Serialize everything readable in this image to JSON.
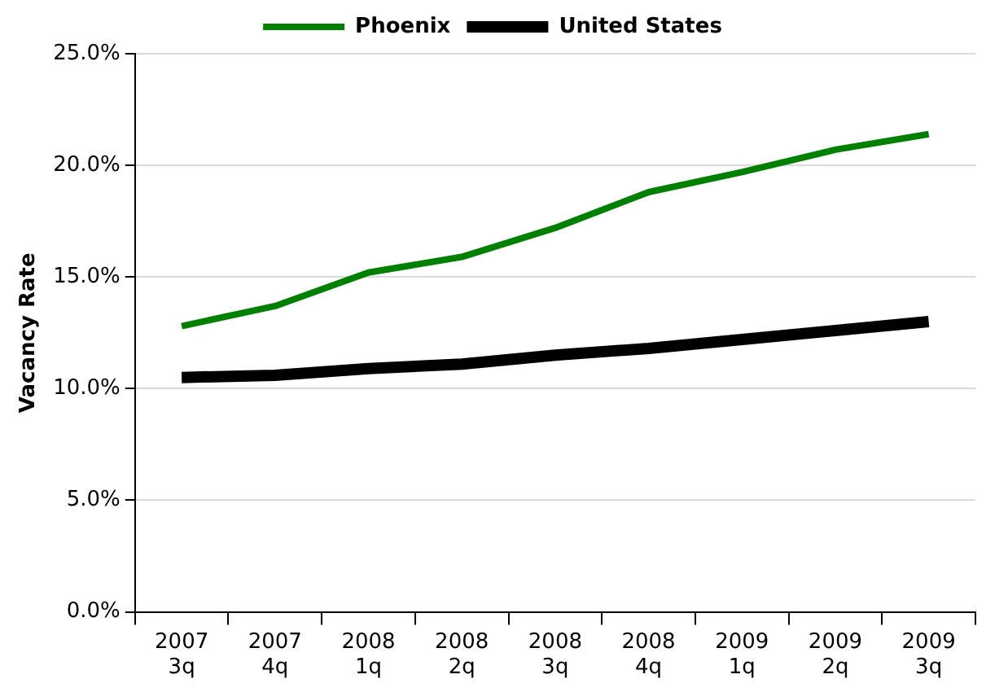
{
  "chart_data": {
    "type": "line",
    "ylabel": "Vacancy Rate",
    "categories": [
      "2007 3q",
      "2007 4q",
      "2008 1q",
      "2008 2q",
      "2008 3q",
      "2008 4q",
      "2009 1q",
      "2009 2q",
      "2009 3q"
    ],
    "series": [
      {
        "name": "Phoenix",
        "color": "#008000",
        "values": [
          12.8,
          13.7,
          15.2,
          15.9,
          17.2,
          18.8,
          19.7,
          20.7,
          21.4
        ]
      },
      {
        "name": "United States",
        "color": "#000000",
        "values": [
          10.5,
          10.6,
          10.9,
          11.1,
          11.5,
          11.8,
          12.2,
          12.6,
          13.0
        ]
      }
    ],
    "ylim": [
      0,
      25
    ],
    "yticks": [
      {
        "value": 0,
        "label": "0.0%"
      },
      {
        "value": 5,
        "label": "5.0%"
      },
      {
        "value": 10,
        "label": "10.0%"
      },
      {
        "value": 15,
        "label": "15.0%"
      },
      {
        "value": 20,
        "label": "20.0%"
      },
      {
        "value": 25,
        "label": "25.0%"
      }
    ],
    "grid": "y",
    "legend": "top",
    "marker": "none",
    "line_style": "solid"
  }
}
